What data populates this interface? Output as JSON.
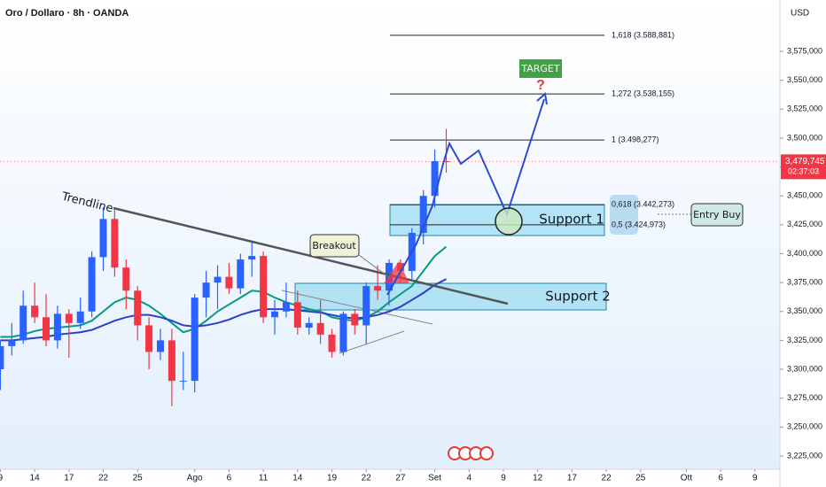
{
  "chart_data": {
    "type": "candlestick",
    "title": "Oro / Dollaro · 8h · OANDA",
    "currency": "USD",
    "x": [
      0,
      1,
      2,
      3,
      4,
      5,
      6,
      7,
      8,
      9,
      10,
      11,
      12,
      13,
      14,
      15,
      16,
      17,
      18,
      19,
      20,
      21,
      22,
      23,
      24,
      25,
      26,
      27,
      28,
      29,
      30,
      31,
      32,
      33,
      34,
      35,
      36,
      37,
      38,
      39
    ],
    "open": [
      3300000,
      3320000,
      3325000,
      3355000,
      3345000,
      3325000,
      3348000,
      3340000,
      3350000,
      3397000,
      3430000,
      3388000,
      3368000,
      3338000,
      3315000,
      3325000,
      3290000,
      3290000,
      3362000,
      3375000,
      3380000,
      3370000,
      3395000,
      3398000,
      3345000,
      3350000,
      3358000,
      3336000,
      3340000,
      3330000,
      3315000,
      3348000,
      3338000,
      3372000,
      3368000,
      3392000,
      3385000,
      3418000,
      3450000,
      3480000
    ],
    "high": [
      3325000,
      3340000,
      3368000,
      3375000,
      3365000,
      3355000,
      3352000,
      3362000,
      3402000,
      3440000,
      3438000,
      3395000,
      3372000,
      3345000,
      3335000,
      3335000,
      3315000,
      3365000,
      3385000,
      3390000,
      3392000,
      3400000,
      3410000,
      3402000,
      3360000,
      3375000,
      3368000,
      3345000,
      3360000,
      3335000,
      3350000,
      3352000,
      3375000,
      3390000,
      3395000,
      3395000,
      3422000,
      3455000,
      3490000,
      3508000
    ],
    "low": [
      3282000,
      3312000,
      3322000,
      3340000,
      3320000,
      3318000,
      3310000,
      3335000,
      3345000,
      3385000,
      3380000,
      3352000,
      3325000,
      3300000,
      3308000,
      3268000,
      3282000,
      3280000,
      3345000,
      3352000,
      3365000,
      3365000,
      3380000,
      3340000,
      3330000,
      3345000,
      3330000,
      3330000,
      3322000,
      3310000,
      3312000,
      3330000,
      3322000,
      3360000,
      3355000,
      3375000,
      3378000,
      3408000,
      3440000,
      3470000
    ],
    "close": [
      3320000,
      3325000,
      3355000,
      3345000,
      3325000,
      3348000,
      3340000,
      3350000,
      3397000,
      3430000,
      3388000,
      3368000,
      3338000,
      3315000,
      3325000,
      3290000,
      3290000,
      3362000,
      3375000,
      3380000,
      3370000,
      3395000,
      3398000,
      3345000,
      3350000,
      3358000,
      3336000,
      3340000,
      3330000,
      3315000,
      3348000,
      3338000,
      3372000,
      3368000,
      3392000,
      3385000,
      3418000,
      3450000,
      3480000,
      3479745
    ],
    "up_color": "#2962ff",
    "down_color": "#f23645",
    "series": [
      {
        "color": "#089981",
        "values": [
          3328000,
          3328000,
          3330000,
          3333000,
          3335000,
          3336000,
          3337000,
          3338000,
          3342000,
          3350000,
          3358000,
          3362000,
          3360000,
          3355000,
          3348000,
          3340000,
          3332000,
          3335000,
          3342000,
          3350000,
          3356000,
          3362000,
          3368000,
          3367000,
          3362000,
          3358000,
          3355000,
          3352000,
          3350000,
          3345000,
          3343000,
          3342000,
          3345000,
          3350000,
          3358000,
          3365000,
          3372000,
          3385000,
          3398000,
          3406000
        ]
      },
      {
        "color": "#2e3fc7",
        "values": [
          3325000,
          3325000,
          3326000,
          3327000,
          3328000,
          3330000,
          3331000,
          3332000,
          3334000,
          3338000,
          3342000,
          3345000,
          3347000,
          3347000,
          3345000,
          3342000,
          3338000,
          3337000,
          3338000,
          3340000,
          3343000,
          3347000,
          3350000,
          3352000,
          3352000,
          3352000,
          3351000,
          3350000,
          3349000,
          3347000,
          3345000,
          3344000,
          3345000,
          3347000,
          3350000,
          3354000,
          3360000,
          3366000,
          3373000,
          3378000
        ]
      }
    ],
    "xlim": [
      0,
      68
    ],
    "xticks": [
      {
        "value": 0,
        "label": "9"
      },
      {
        "value": 3,
        "label": "14"
      },
      {
        "value": 6,
        "label": "17"
      },
      {
        "value": 9,
        "label": "22"
      },
      {
        "value": 12,
        "label": "25"
      },
      {
        "value": 17,
        "label": "Ago"
      },
      {
        "value": 20,
        "label": "6"
      },
      {
        "value": 23,
        "label": "11"
      },
      {
        "value": 26,
        "label": "14"
      },
      {
        "value": 29,
        "label": "19"
      },
      {
        "value": 32,
        "label": "22"
      },
      {
        "value": 35,
        "label": "27"
      },
      {
        "value": 38,
        "label": "Set"
      },
      {
        "value": 41,
        "label": "4"
      },
      {
        "value": 44,
        "label": "9"
      },
      {
        "value": 47,
        "label": "12"
      },
      {
        "value": 50,
        "label": "17"
      },
      {
        "value": 53,
        "label": "22"
      },
      {
        "value": 56,
        "label": "25"
      },
      {
        "value": 60,
        "label": "Ott"
      },
      {
        "value": 63,
        "label": "6"
      },
      {
        "value": 66,
        "label": "9"
      }
    ],
    "ylim": [
      3213480,
      3619424
    ],
    "yticks": [
      {
        "value": 3225000,
        "label": "3,225,000"
      },
      {
        "value": 3250000,
        "label": "3,250,000"
      },
      {
        "value": 3275000,
        "label": "3,275,000"
      },
      {
        "value": 3300000,
        "label": "3,300,000"
      },
      {
        "value": 3325000,
        "label": "3,325,000"
      },
      {
        "value": 3350000,
        "label": "3,350,000"
      },
      {
        "value": 3375000,
        "label": "3,375,000"
      },
      {
        "value": 3400000,
        "label": "3,400,000"
      },
      {
        "value": 3425000,
        "label": "3,425,000"
      },
      {
        "value": 3450000,
        "label": "3,450,000"
      },
      {
        "value": 3475000,
        "label": "3,475,000"
      },
      {
        "value": 3500000,
        "label": "3,500,000"
      },
      {
        "value": 3525000,
        "label": "3,525,000"
      },
      {
        "value": 3550000,
        "label": "3,550,000"
      },
      {
        "value": 3575000,
        "label": "3,575,000"
      }
    ],
    "grid": false,
    "last_price": {
      "value": 3479745,
      "label": "3,479,745"
    },
    "countdown": "02:37:03",
    "fib_levels": [
      {
        "value": 3588881,
        "label": "1,618 (3.588,881)"
      },
      {
        "value": 3538155,
        "label": "1,272 (3.538,155)"
      },
      {
        "value": 3498277,
        "label": "1 (3.498,277)"
      },
      {
        "value": 3442273,
        "label": "0,618 (3.442,273)"
      },
      {
        "value": 3424973,
        "label": "0,5 (3.424,973)"
      }
    ],
    "annotations": {
      "trendline": "Trendline",
      "breakout": "Breakout",
      "support1": "Support 1",
      "support2": "Support 2",
      "entry": "Entry Buy",
      "target": "TARGET",
      "question": "?"
    }
  }
}
